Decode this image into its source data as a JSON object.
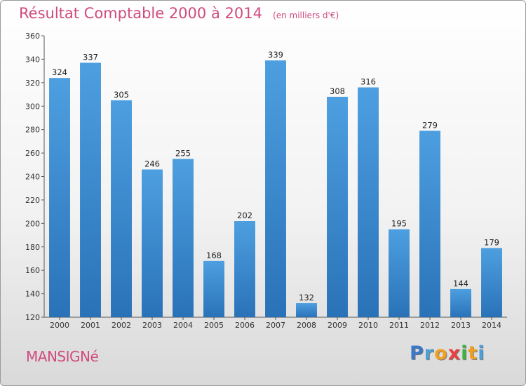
{
  "header": {
    "title": "Résultat Comptable 2000 à 2014",
    "subtitle": "(en milliers d'€)"
  },
  "footer": {
    "town": "MANSIGNé",
    "logo_letters": [
      {
        "ch": "P",
        "color": "#3a78c8"
      },
      {
        "ch": "r",
        "color": "#4aa0d8"
      },
      {
        "ch": "o",
        "color": "#f0a020"
      },
      {
        "ch": "x",
        "color": "#e84040"
      },
      {
        "ch": "i",
        "color": "#40b040"
      },
      {
        "ch": "t",
        "color": "#f0a020"
      },
      {
        "ch": "i",
        "color": "#4aa0d8"
      }
    ]
  },
  "chart_data": {
    "type": "bar",
    "title": "Résultat Comptable 2000 à 2014",
    "subtitle": "(en milliers d'€)",
    "categories": [
      "2000",
      "2001",
      "2002",
      "2003",
      "2004",
      "2005",
      "2006",
      "2007",
      "2008",
      "2009",
      "2010",
      "2011",
      "2012",
      "2013",
      "2014"
    ],
    "values": [
      324,
      337,
      305,
      246,
      255,
      168,
      202,
      339,
      132,
      308,
      316,
      195,
      279,
      144,
      179
    ],
    "ylim": [
      120,
      360
    ],
    "yticks": [
      120,
      140,
      160,
      180,
      200,
      220,
      240,
      260,
      280,
      300,
      320,
      340,
      360
    ],
    "grid": false,
    "bar_color": "#4d9fe0",
    "bar_color_dark": "#2a72b8"
  }
}
